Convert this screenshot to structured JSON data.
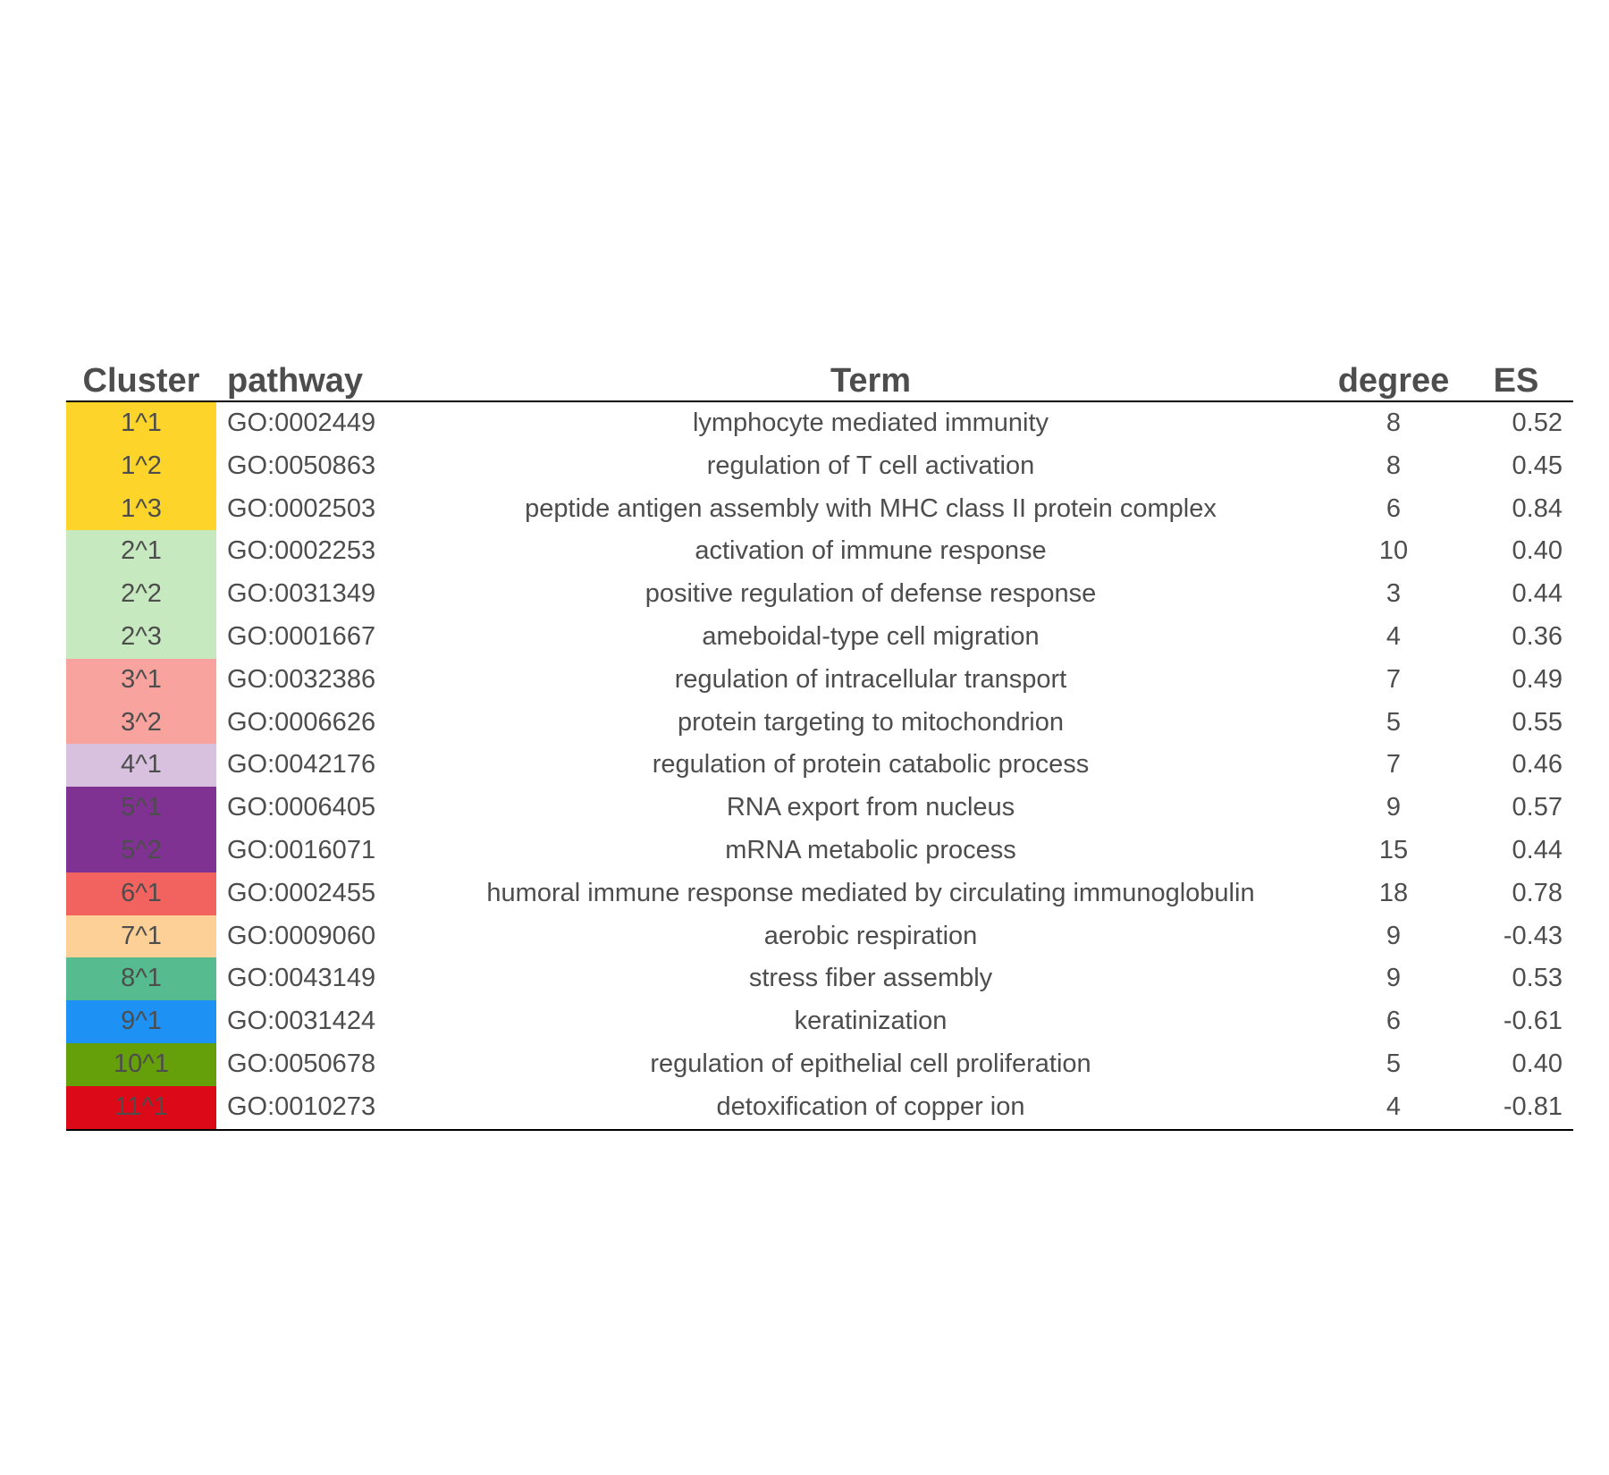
{
  "chart_data": {
    "type": "table",
    "columns": [
      "Cluster",
      "pathway",
      "Term",
      "degree",
      "ES"
    ],
    "rows": [
      {
        "cluster": "1^1",
        "color": "#FDD52A",
        "pathway": "GO:0002449",
        "term": "lymphocyte mediated immunity",
        "degree": "8",
        "es": "0.52"
      },
      {
        "cluster": "1^2",
        "color": "#FDD52A",
        "pathway": "GO:0050863",
        "term": "regulation of T cell activation",
        "degree": "8",
        "es": "0.45"
      },
      {
        "cluster": "1^3",
        "color": "#FDD52A",
        "pathway": "GO:0002503",
        "term": "peptide antigen assembly with MHC class II protein complex",
        "degree": "6",
        "es": "0.84"
      },
      {
        "cluster": "2^1",
        "color": "#C7E9C0",
        "pathway": "GO:0002253",
        "term": "activation of immune response",
        "degree": "10",
        "es": "0.40"
      },
      {
        "cluster": "2^2",
        "color": "#C7E9C0",
        "pathway": "GO:0031349",
        "term": "positive regulation of defense response",
        "degree": "3",
        "es": "0.44"
      },
      {
        "cluster": "2^3",
        "color": "#C7E9C0",
        "pathway": "GO:0001667",
        "term": "ameboidal-type cell migration",
        "degree": "4",
        "es": "0.36"
      },
      {
        "cluster": "3^1",
        "color": "#F8A39D",
        "pathway": "GO:0032386",
        "term": "regulation of intracellular transport",
        "degree": "7",
        "es": "0.49"
      },
      {
        "cluster": "3^2",
        "color": "#F8A39D",
        "pathway": "GO:0006626",
        "term": "protein targeting to mitochondrion",
        "degree": "5",
        "es": "0.55"
      },
      {
        "cluster": "4^1",
        "color": "#D8C0DF",
        "pathway": "GO:0042176",
        "term": "regulation of protein catabolic process",
        "degree": "7",
        "es": "0.46"
      },
      {
        "cluster": "5^1",
        "color": "#7F3292",
        "pathway": "GO:0006405",
        "term": "RNA export from nucleus",
        "degree": "9",
        "es": "0.57"
      },
      {
        "cluster": "5^2",
        "color": "#7F3292",
        "pathway": "GO:0016071",
        "term": "mRNA metabolic process",
        "degree": "15",
        "es": "0.44"
      },
      {
        "cluster": "6^1",
        "color": "#F26360",
        "pathway": "GO:0002455",
        "term": "humoral immune response mediated by circulating immunoglobulin",
        "degree": "18",
        "es": "0.78"
      },
      {
        "cluster": "7^1",
        "color": "#FDD097",
        "pathway": "GO:0009060",
        "term": "aerobic respiration",
        "degree": "9",
        "es": "-0.43"
      },
      {
        "cluster": "8^1",
        "color": "#56BB8F",
        "pathway": "GO:0043149",
        "term": "stress fiber assembly",
        "degree": "9",
        "es": "0.53"
      },
      {
        "cluster": "9^1",
        "color": "#1D92F4",
        "pathway": "GO:0031424",
        "term": "keratinization",
        "degree": "6",
        "es": "-0.61"
      },
      {
        "cluster": "10^1",
        "color": "#65A00A",
        "pathway": "GO:0050678",
        "term": "regulation of epithelial cell proliferation",
        "degree": "5",
        "es": "0.40"
      },
      {
        "cluster": "11^1",
        "color": "#DC0919",
        "pathway": "GO:0010273",
        "term": "detoxification of copper ion",
        "degree": "4",
        "es": "-0.81"
      }
    ]
  }
}
